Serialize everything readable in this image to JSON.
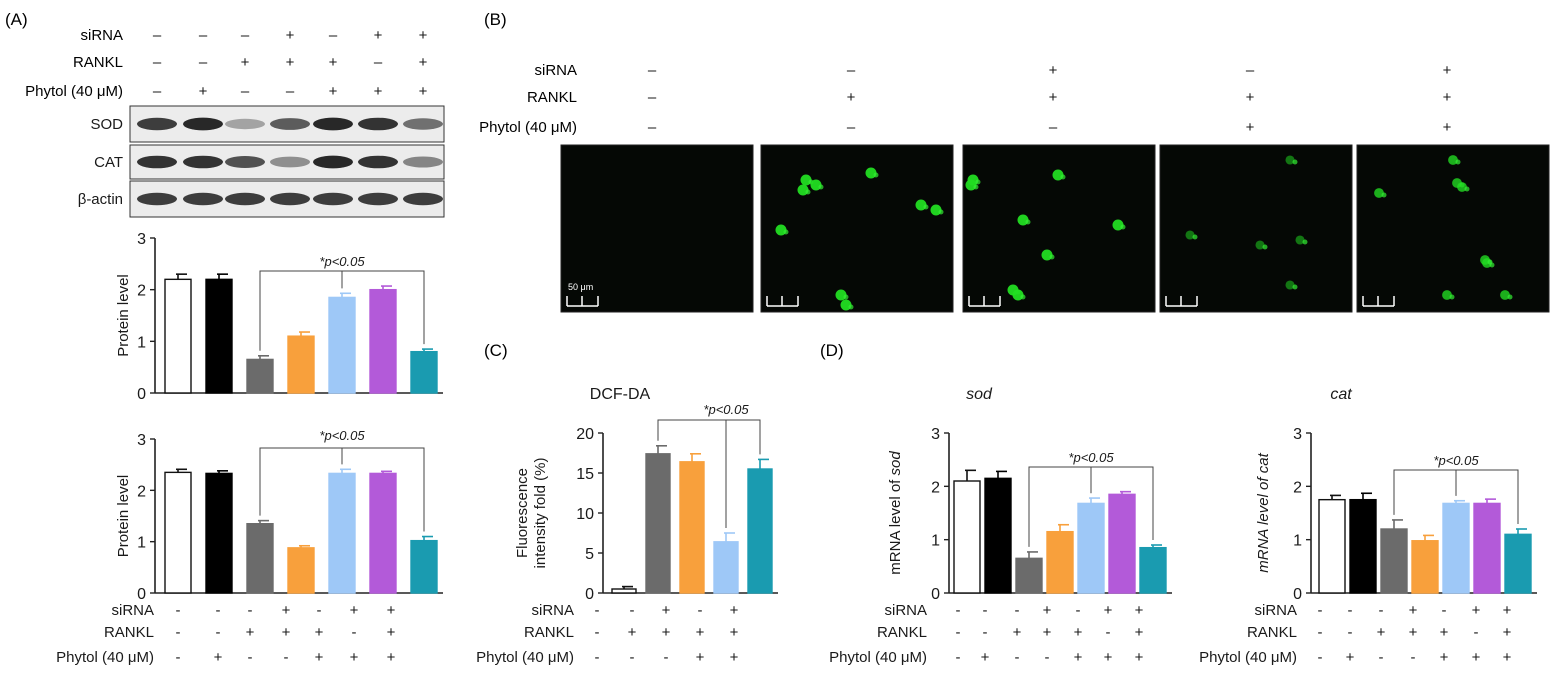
{
  "colors": {
    "control": "#ffffff",
    "phytol": "#000000",
    "rankl": "#6b6b6b",
    "sirna_rankl": "#f8a03c",
    "rankl_phytol": "#9ec8f7",
    "phytol_sirna": "#b35ad9",
    "all": "#1a9bb0"
  },
  "panels": {
    "a": "(A)",
    "b": "(B)",
    "c": "(C)",
    "d": "(D)"
  },
  "row_labels": {
    "sirna": "siRNA",
    "rankl": "RANKL",
    "phytol": "Phytol (40 μM)"
  },
  "signs_a_top": {
    "sirna": [
      "–",
      "–",
      "–",
      "+",
      "–",
      "+",
      "+"
    ],
    "rankl": [
      "–",
      "–",
      "+",
      "+",
      "+",
      "–",
      "+"
    ],
    "phytol": [
      "–",
      "+",
      "–",
      "–",
      "+",
      "+",
      "+"
    ]
  },
  "signs_bottom": {
    "sirna": [
      "-",
      "-",
      "-",
      "+",
      "-",
      "+",
      "+"
    ],
    "rankl": [
      "-",
      "-",
      "+",
      "+",
      "+",
      "-",
      "+"
    ],
    "phytol": [
      "-",
      "+",
      "-",
      "-",
      "+",
      "+",
      "+"
    ]
  },
  "signs_b": {
    "sirna": [
      "–",
      "–",
      "+",
      "–",
      "+"
    ],
    "rankl": [
      "–",
      "+",
      "+",
      "+",
      "+"
    ],
    "phytol": [
      "–",
      "–",
      "–",
      "+",
      "+"
    ]
  },
  "signs_c": {
    "sirna": [
      "-",
      "-",
      "+",
      "-",
      "+"
    ],
    "rankl": [
      "-",
      "+",
      "+",
      "+",
      "+"
    ],
    "phytol": [
      "-",
      "-",
      "-",
      "+",
      "+"
    ]
  },
  "blot_labels": [
    "SOD",
    "CAT",
    "β-actin"
  ],
  "blot_intensity": [
    [
      0.85,
      0.95,
      0.35,
      0.7,
      0.95,
      0.9,
      0.6
    ],
    [
      0.9,
      0.9,
      0.75,
      0.45,
      0.95,
      0.9,
      0.5
    ],
    [
      0.85,
      0.85,
      0.85,
      0.85,
      0.85,
      0.85,
      0.85
    ]
  ],
  "scale_bar_label": "50 μm",
  "cells_intensity": [
    0,
    1,
    1,
    0.35,
    0.6
  ],
  "chart_data": [
    {
      "id": "A_SOD",
      "type": "bar",
      "ylabel": "Protein level",
      "ylim": [
        0,
        3
      ],
      "yticks": [
        0,
        1,
        2,
        3
      ],
      "values": [
        2.2,
        2.2,
        0.65,
        1.1,
        1.85,
        2.0,
        0.8
      ],
      "errors": [
        0.1,
        0.1,
        0.07,
        0.08,
        0.08,
        0.07,
        0.05
      ],
      "colors": [
        "control",
        "phytol",
        "rankl",
        "sirna_rankl",
        "rankl_phytol",
        "phytol_sirna",
        "all"
      ],
      "annotation": "*p<0.05"
    },
    {
      "id": "A_CAT",
      "type": "bar",
      "ylabel": "Protein level",
      "ylim": [
        0,
        3
      ],
      "yticks": [
        0,
        1,
        2,
        3
      ],
      "values": [
        2.35,
        2.33,
        1.35,
        0.88,
        2.33,
        2.33,
        1.02
      ],
      "errors": [
        0.06,
        0.05,
        0.06,
        0.04,
        0.08,
        0.04,
        0.08
      ],
      "colors": [
        "control",
        "phytol",
        "rankl",
        "sirna_rankl",
        "rankl_phytol",
        "phytol_sirna",
        "all"
      ],
      "annotation": "*p<0.05"
    },
    {
      "id": "C_DCFDA",
      "type": "bar",
      "title": "DCF-DA",
      "ylabel": [
        "Fluorescence",
        "intensity fold (%)"
      ],
      "ylim": [
        0,
        20
      ],
      "yticks": [
        0,
        5,
        10,
        15,
        20
      ],
      "values": [
        0.5,
        17.4,
        16.4,
        6.4,
        15.5
      ],
      "errors": [
        0.3,
        1.0,
        1.0,
        1.1,
        1.2
      ],
      "colors": [
        "control",
        "rankl",
        "sirna_rankl",
        "rankl_phytol",
        "all"
      ],
      "annotation": "*p<0.05"
    },
    {
      "id": "D_sod",
      "type": "bar",
      "title": "sod",
      "ylabel": "mRNA level of sod",
      "ylim": [
        0,
        3
      ],
      "yticks": [
        0,
        1,
        2,
        3
      ],
      "values": [
        2.1,
        2.15,
        0.65,
        1.15,
        1.68,
        1.85,
        0.85
      ],
      "errors": [
        0.2,
        0.13,
        0.12,
        0.13,
        0.1,
        0.05,
        0.05
      ],
      "colors": [
        "control",
        "phytol",
        "rankl",
        "sirna_rankl",
        "rankl_phytol",
        "phytol_sirna",
        "all"
      ],
      "annotation": "*p<0.05"
    },
    {
      "id": "D_cat",
      "type": "bar",
      "title": "cat",
      "ylabel": "mRNA level of cat",
      "ylim": [
        0,
        3
      ],
      "yticks": [
        0,
        1,
        2,
        3
      ],
      "values": [
        1.75,
        1.75,
        1.2,
        0.98,
        1.68,
        1.68,
        1.1
      ],
      "errors": [
        0.08,
        0.12,
        0.17,
        0.1,
        0.05,
        0.08,
        0.1
      ],
      "colors": [
        "control",
        "phytol",
        "rankl",
        "sirna_rankl",
        "rankl_phytol",
        "phytol_sirna",
        "all"
      ],
      "annotation": "*p<0.05"
    }
  ]
}
